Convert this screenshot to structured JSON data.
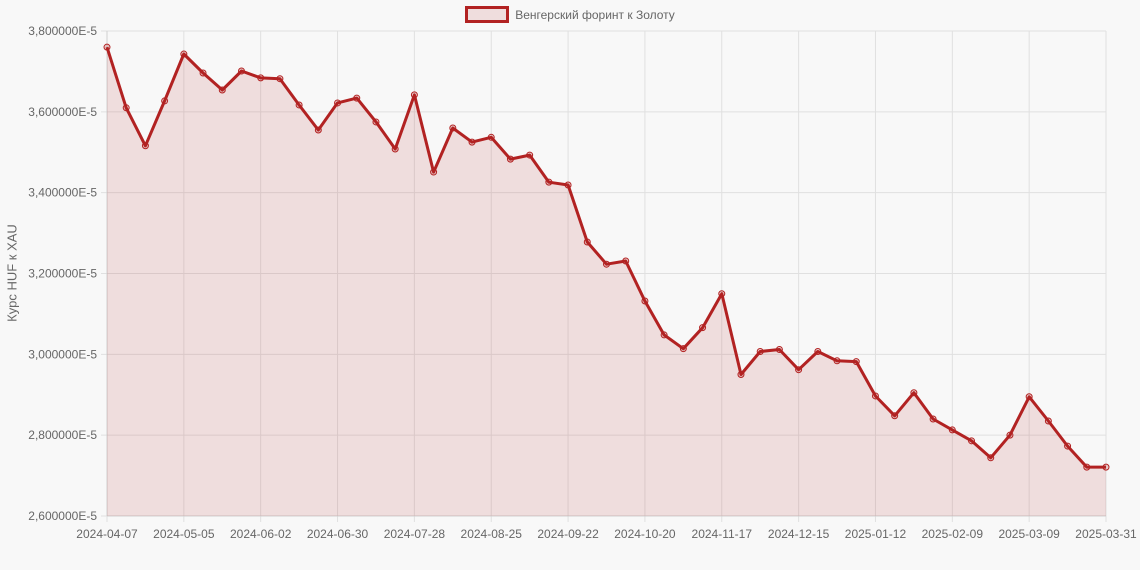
{
  "chart_data": {
    "type": "area",
    "title": "",
    "legend": [
      {
        "label": "Венгерский форинт к Золоту",
        "color": "#b22222"
      }
    ],
    "legend_position": "top",
    "xlabel": "",
    "ylabel": "Курс HUF к XAU",
    "ylim": [
      2.6e-05,
      3.8e-05
    ],
    "y_ticks": [
      "3,800000E-5",
      "3,600000E-5",
      "3,400000E-5",
      "3,200000E-5",
      "3,000000E-5",
      "2,800000E-5",
      "2,600000E-5"
    ],
    "x_ticks": [
      "2024-04-07",
      "2024-05-05",
      "2024-06-02",
      "2024-06-30",
      "2024-07-28",
      "2024-08-25",
      "2024-09-22",
      "2024-10-20",
      "2024-11-17",
      "2024-12-15",
      "2025-01-12",
      "2025-02-09",
      "2025-03-09",
      "2025-03-31"
    ],
    "grid": true,
    "categories": [
      "2024-04-07",
      "2024-04-14",
      "2024-04-21",
      "2024-04-28",
      "2024-05-05",
      "2024-05-12",
      "2024-05-19",
      "2024-05-26",
      "2024-06-02",
      "2024-06-09",
      "2024-06-16",
      "2024-06-23",
      "2024-06-30",
      "2024-07-07",
      "2024-07-14",
      "2024-07-21",
      "2024-07-28",
      "2024-08-04",
      "2024-08-11",
      "2024-08-18",
      "2024-08-25",
      "2024-09-01",
      "2024-09-08",
      "2024-09-15",
      "2024-09-22",
      "2024-09-29",
      "2024-10-06",
      "2024-10-13",
      "2024-10-20",
      "2024-10-27",
      "2024-11-03",
      "2024-11-10",
      "2024-11-17",
      "2024-11-24",
      "2024-12-01",
      "2024-12-08",
      "2024-12-15",
      "2024-12-22",
      "2024-12-29",
      "2025-01-05",
      "2025-01-12",
      "2025-01-19",
      "2025-01-26",
      "2025-02-02",
      "2025-02-09",
      "2025-02-16",
      "2025-02-23",
      "2025-03-02",
      "2025-03-09",
      "2025-03-16",
      "2025-03-23",
      "2025-03-30",
      "2025-03-31"
    ],
    "series": [
      {
        "name": "Венгерский форинт к Золоту",
        "unit": "E-5",
        "values": [
          3.76,
          3.61,
          3.516,
          3.627,
          3.743,
          3.696,
          3.654,
          3.701,
          3.684,
          3.682,
          3.617,
          3.555,
          3.622,
          3.634,
          3.575,
          3.508,
          3.642,
          3.451,
          3.56,
          3.525,
          3.537,
          3.483,
          3.493,
          3.426,
          3.419,
          3.278,
          3.223,
          3.231,
          3.132,
          3.048,
          3.014,
          3.066,
          3.15,
          2.95,
          3.007,
          3.012,
          2.962,
          3.007,
          2.984,
          2.982,
          2.897,
          2.848,
          2.905,
          2.84,
          2.813,
          2.786,
          2.744,
          2.8,
          2.895,
          2.835,
          2.773,
          2.721,
          2.721
        ]
      }
    ],
    "colors": {
      "line": "#b22222",
      "fill": "rgba(178,34,34,0.12)",
      "grid": "#dddddd"
    }
  }
}
